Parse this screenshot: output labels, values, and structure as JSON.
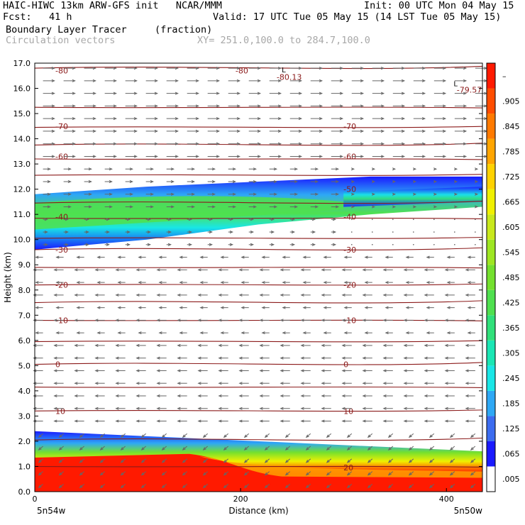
{
  "header": {
    "left_line1": "HAIC-HIWC 13km ARW-GFS init   NCAR/MMM",
    "left_line2": "Fcst:   41 h",
    "field_name": "Boundary Layer Tracer",
    "field_units": "(fraction)",
    "vector_name": "Circulation vectors",
    "cross_section": "XY= 251.0,100.0 to 284.7,100.0",
    "init": "Init: 00 UTC Mon 04 May 15",
    "valid": "Valid: 17 UTC Tue 05 May 15 (14 LST Tue 05 May 15)"
  },
  "chart_data": {
    "type": "cross-section contour",
    "ylabel": "Height (km)",
    "xlabel": "Distance (km)",
    "ylim": [
      0,
      17
    ],
    "xlim": [
      0,
      435
    ],
    "y_ticks": [
      "0.0",
      "1.0",
      "2.0",
      "3.0",
      "4.0",
      "5.0",
      "6.0",
      "7.0",
      "8.0",
      "9.0",
      "10.0",
      "11.0",
      "12.0",
      "13.0",
      "14.0",
      "15.0",
      "16.0",
      "17.0"
    ],
    "x_ticks": [
      {
        "value": 0,
        "label": "0"
      },
      {
        "value": 200,
        "label": "200"
      },
      {
        "value": 400,
        "label": "400"
      }
    ],
    "x_endpoints": {
      "left": "5n54w",
      "right": "5n50w"
    },
    "colorbar": {
      "levels": [
        ".005",
        ".065",
        ".125",
        ".185",
        ".245",
        ".305",
        ".365",
        ".425",
        ".485",
        ".545",
        ".605",
        ".665",
        ".725",
        ".785",
        ".845",
        ".905",
        "–"
      ],
      "colors": [
        "#ffffff",
        "#1a1aff",
        "#3c6cf0",
        "#2ea8f5",
        "#19e6e6",
        "#1ae6b4",
        "#30e07a",
        "#4fe04f",
        "#74e02e",
        "#9ee622",
        "#c8e81c",
        "#f0f000",
        "#ffd200",
        "#ffa500",
        "#ff7a00",
        "#ff4d00",
        "#ff1a00"
      ]
    },
    "temperature_contours": [
      {
        "label": "-80",
        "temp": -80,
        "height": 16.7
      },
      {
        "label": "-80.13",
        "temp": -80.13,
        "height": 16.6
      },
      {
        "label": "-79.57",
        "temp": -79.57,
        "height": 16.0
      },
      {
        "label": "-70",
        "temp": -70,
        "height": 14.5
      },
      {
        "label": "-60",
        "temp": -60,
        "height": 13.3
      },
      {
        "label": "-50",
        "temp": -50,
        "height": 12.0
      },
      {
        "label": "-40",
        "temp": -40,
        "height": 10.9
      },
      {
        "label": "-30",
        "temp": -30,
        "height": 9.6
      },
      {
        "label": "-20",
        "temp": -20,
        "height": 8.2
      },
      {
        "label": "-10",
        "temp": -10,
        "height": 6.8
      },
      {
        "label": "0",
        "temp": 0,
        "height": 5.05
      },
      {
        "label": "10",
        "temp": 10,
        "height": 3.2
      },
      {
        "label": "20",
        "temp": 20,
        "height": 0.9
      }
    ],
    "extrema_labels": [
      {
        "label": "L",
        "value": "-80.13"
      },
      {
        "label": "L",
        "value": "-79.57"
      }
    ],
    "tracer_layers": [
      {
        "name": "upper tracer layer",
        "bottom_km": [
          9.6,
          10.0,
          10.6,
          11.0,
          11.3
        ],
        "top_km": [
          11.8,
          12.1,
          12.3,
          12.5,
          12.5
        ],
        "max_fraction": 0.5
      },
      {
        "name": "boundary layer",
        "bottom_km": [
          0.1,
          0.1,
          0.1,
          0.1,
          0.1
        ],
        "top_km": [
          2.4,
          2.2,
          2.0,
          1.8,
          1.6
        ],
        "max_fraction": 0.95
      }
    ]
  }
}
